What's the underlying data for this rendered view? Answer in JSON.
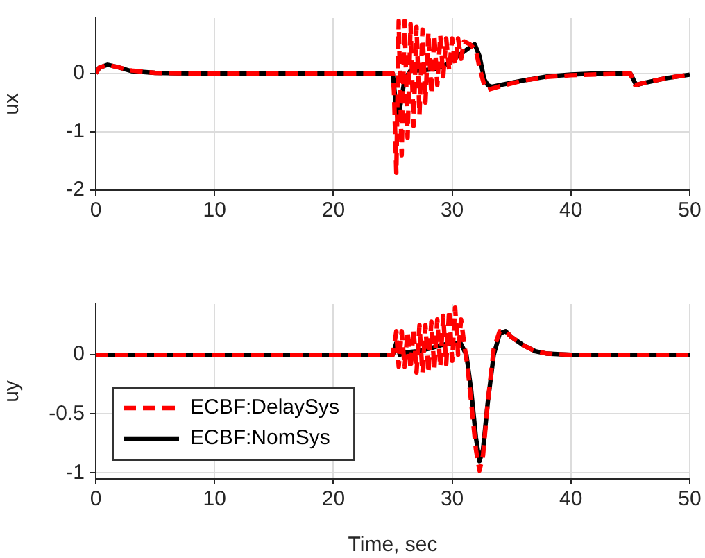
{
  "chart_data": [
    {
      "type": "line",
      "ylabel": "ux",
      "xlim": [
        0,
        50
      ],
      "xticks": [
        0,
        10,
        20,
        30,
        40,
        50
      ],
      "ylim": [
        -2,
        0.95
      ],
      "yticks": [
        -2,
        -1,
        0
      ],
      "grid": true,
      "legend": false,
      "marker": "none",
      "series": [
        {
          "color": "#ff0000",
          "line_style": "dashed",
          "x": [
            0,
            0.3,
            1,
            2,
            3,
            5,
            8,
            25,
            25.1,
            25.3,
            25.5,
            25.75,
            26,
            26.25,
            26.5,
            26.75,
            27,
            27.25,
            27.5,
            27.75,
            28,
            28.25,
            28.5,
            28.75,
            29,
            29.25,
            29.5,
            29.75,
            30,
            30.25,
            30.5,
            30.75,
            31,
            31.5,
            32,
            32.3,
            32.7,
            33,
            34,
            36,
            38,
            40,
            45,
            45.4,
            46,
            48,
            50
          ],
          "values": [
            0,
            0.1,
            0.15,
            0.1,
            0.05,
            0.01,
            0,
            0,
            -0.3,
            -1.7,
            0.9,
            -1.4,
            0.9,
            -1.1,
            0.85,
            -0.9,
            0.8,
            -0.7,
            0.75,
            -0.5,
            0.7,
            -0.35,
            0.65,
            -0.2,
            0.65,
            -0.05,
            0.6,
            0.05,
            0.6,
            0.15,
            0.6,
            0.25,
            0.55,
            0.5,
            0.4,
            0.1,
            -0.2,
            -0.28,
            -0.22,
            -0.12,
            -0.06,
            -0.03,
            0,
            -0.2,
            -0.17,
            -0.08,
            -0.02
          ]
        },
        {
          "color": "#000000",
          "line_style": "solid",
          "x": [
            0,
            0.3,
            1,
            2,
            3,
            5,
            8,
            25,
            25.2,
            25.4,
            25.6,
            26,
            26.5,
            27.5,
            28.5,
            29.5,
            30.5,
            31.5,
            31.9,
            32.3,
            32.7,
            33,
            33.3,
            34,
            36,
            38,
            40,
            42,
            45,
            45.5,
            46,
            48,
            50
          ],
          "values": [
            0,
            0.1,
            0.15,
            0.1,
            0.04,
            0.01,
            0,
            0,
            -0.4,
            -0.75,
            -0.6,
            -0.1,
            0.05,
            0.05,
            0.08,
            0.15,
            0.3,
            0.45,
            0.5,
            0.3,
            -0.1,
            -0.2,
            -0.23,
            -0.2,
            -0.12,
            -0.05,
            -0.02,
            0,
            0,
            -0.2,
            -0.17,
            -0.08,
            -0.02
          ]
        }
      ]
    },
    {
      "type": "line",
      "ylabel": "uy",
      "xlabel": "Time, sec",
      "xlim": [
        0,
        50
      ],
      "xticks": [
        0,
        10,
        20,
        30,
        40,
        50
      ],
      "ylim": [
        -1.05,
        0.43
      ],
      "yticks": [
        -1,
        -0.5,
        0
      ],
      "grid": true,
      "legend": "bottom left",
      "marker": "none",
      "series": [
        {
          "name": "ECBF:DelaySys",
          "color": "#ff0000",
          "line_style": "dashed",
          "x": [
            0,
            25,
            25.3,
            25.5,
            25.75,
            26,
            26.25,
            26.5,
            26.75,
            27,
            27.25,
            27.5,
            27.75,
            28,
            28.25,
            28.5,
            28.75,
            29,
            29.25,
            29.5,
            29.75,
            30,
            30.25,
            30.5,
            30.75,
            31,
            31.3,
            31.6,
            32,
            32.3,
            32.6,
            33,
            33.5,
            34,
            34.5,
            35,
            36,
            37,
            38,
            40,
            50
          ],
          "values": [
            0,
            0,
            0.2,
            -0.1,
            0.2,
            -0.1,
            0.2,
            -0.12,
            0.22,
            -0.15,
            0.25,
            -0.15,
            0.25,
            -0.15,
            0.28,
            -0.12,
            0.3,
            -0.1,
            0.33,
            -0.08,
            0.38,
            -0.05,
            0.4,
            0,
            0.3,
            0.1,
            -0.1,
            -0.4,
            -0.8,
            -0.98,
            -0.85,
            -0.4,
            0.05,
            0.2,
            0.2,
            0.15,
            0.08,
            0.03,
            0.01,
            0,
            0
          ]
        },
        {
          "name": "ECBF:NomSys",
          "color": "#000000",
          "line_style": "solid",
          "x": [
            0,
            25,
            25.3,
            25.6,
            26,
            27,
            28,
            29,
            30,
            30.7,
            31.2,
            31.6,
            32,
            32.3,
            32.6,
            33,
            33.5,
            34,
            34.5,
            35,
            36,
            37,
            38,
            40,
            50
          ],
          "values": [
            0,
            0,
            0.1,
            0,
            0.02,
            0.03,
            0.05,
            0.08,
            0.1,
            0.1,
            0,
            -0.3,
            -0.7,
            -0.9,
            -0.8,
            -0.4,
            0,
            0.18,
            0.2,
            0.15,
            0.08,
            0.03,
            0.01,
            0,
            0
          ]
        }
      ]
    }
  ]
}
